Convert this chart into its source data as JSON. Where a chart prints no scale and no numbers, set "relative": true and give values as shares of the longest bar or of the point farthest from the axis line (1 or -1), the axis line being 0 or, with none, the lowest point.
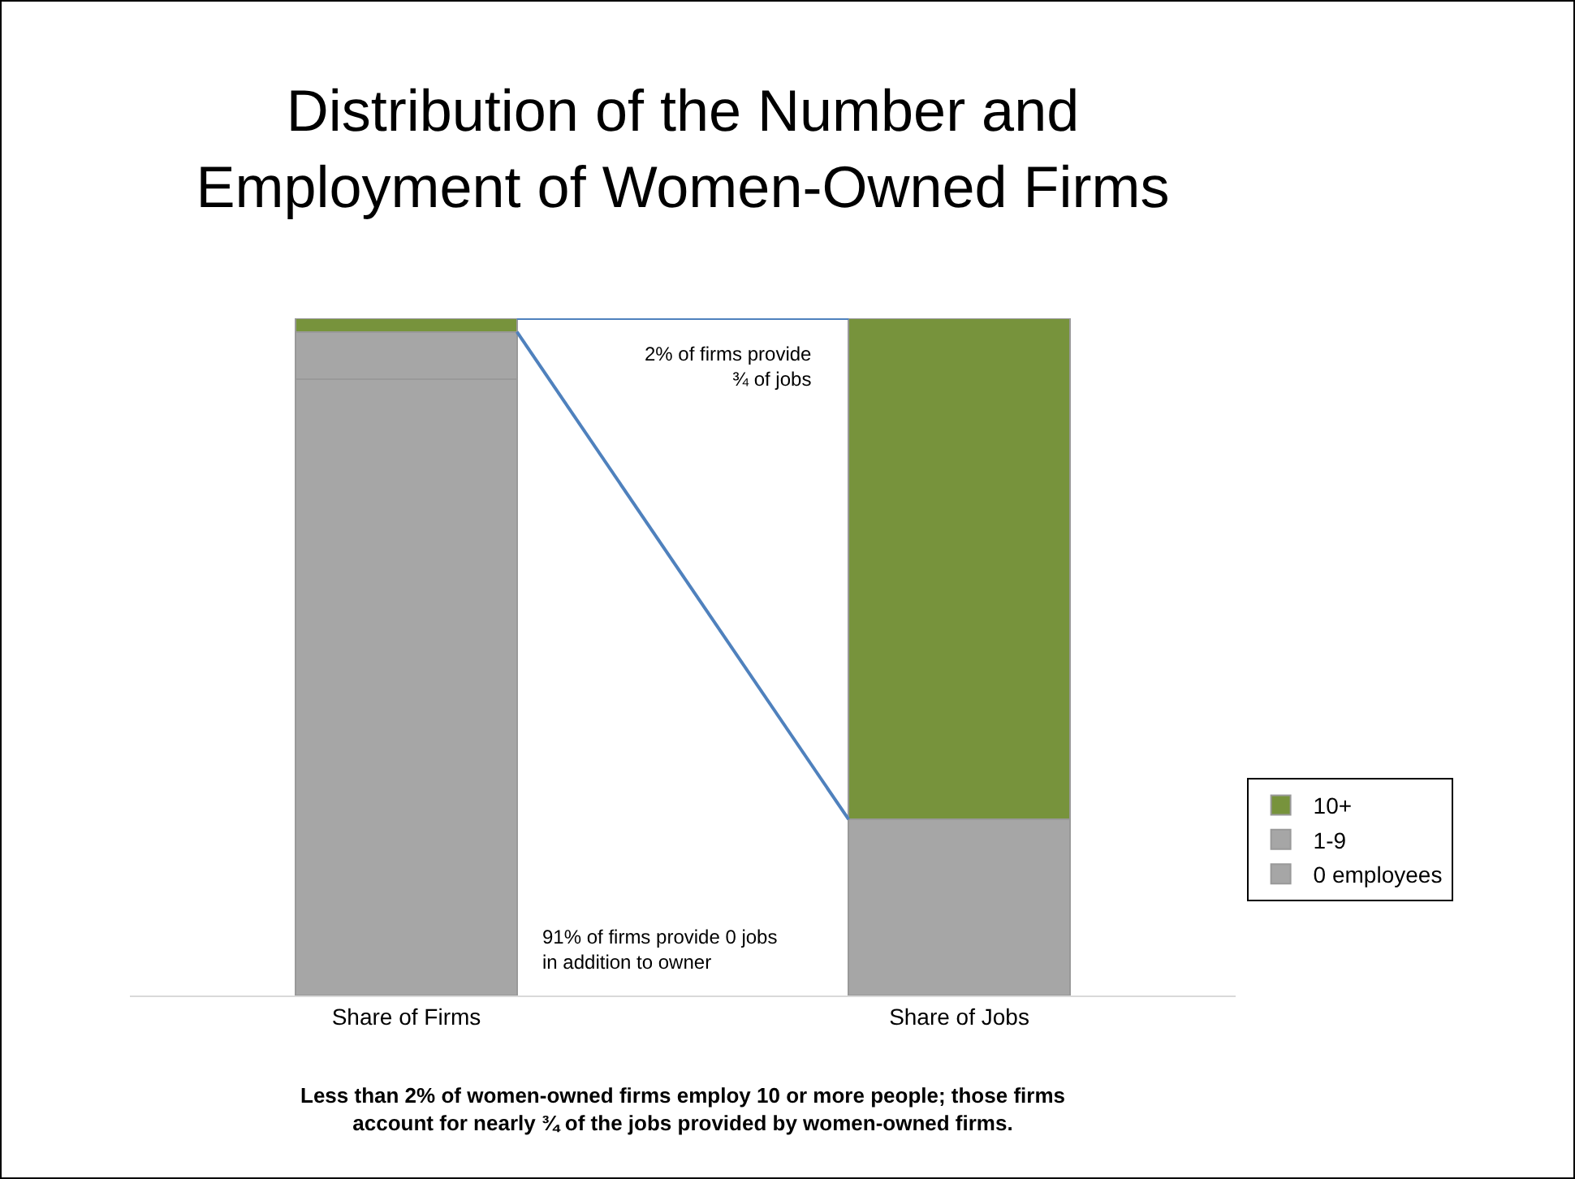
{
  "chart_data": {
    "type": "bar",
    "title": "Distribution of the Number and\nEmployment of Women-Owned Firms",
    "categories": [
      "Share of Firms",
      "Share of Jobs"
    ],
    "stacked": true,
    "relative": true,
    "legend": "right",
    "series": [
      {
        "name": "0 employees",
        "color": "#a6a6a6",
        "values": [
          0.91,
          0
        ]
      },
      {
        "name": "1-9",
        "color": "#a6a6a6",
        "values": [
          0.07,
          0.26
        ]
      },
      {
        "name": "10+",
        "color": "#77933c",
        "values": [
          0.02,
          0.74
        ]
      }
    ],
    "annotations": [
      "2% of firms provide\n¾ of jobs",
      "91% of firms provide 0 jobs\nin addition to owner",
      "Less than 2% of women-owned firms employ 10 or more people; those firms\naccount for nearly ¾ of the jobs provided by women-owned firms."
    ]
  }
}
